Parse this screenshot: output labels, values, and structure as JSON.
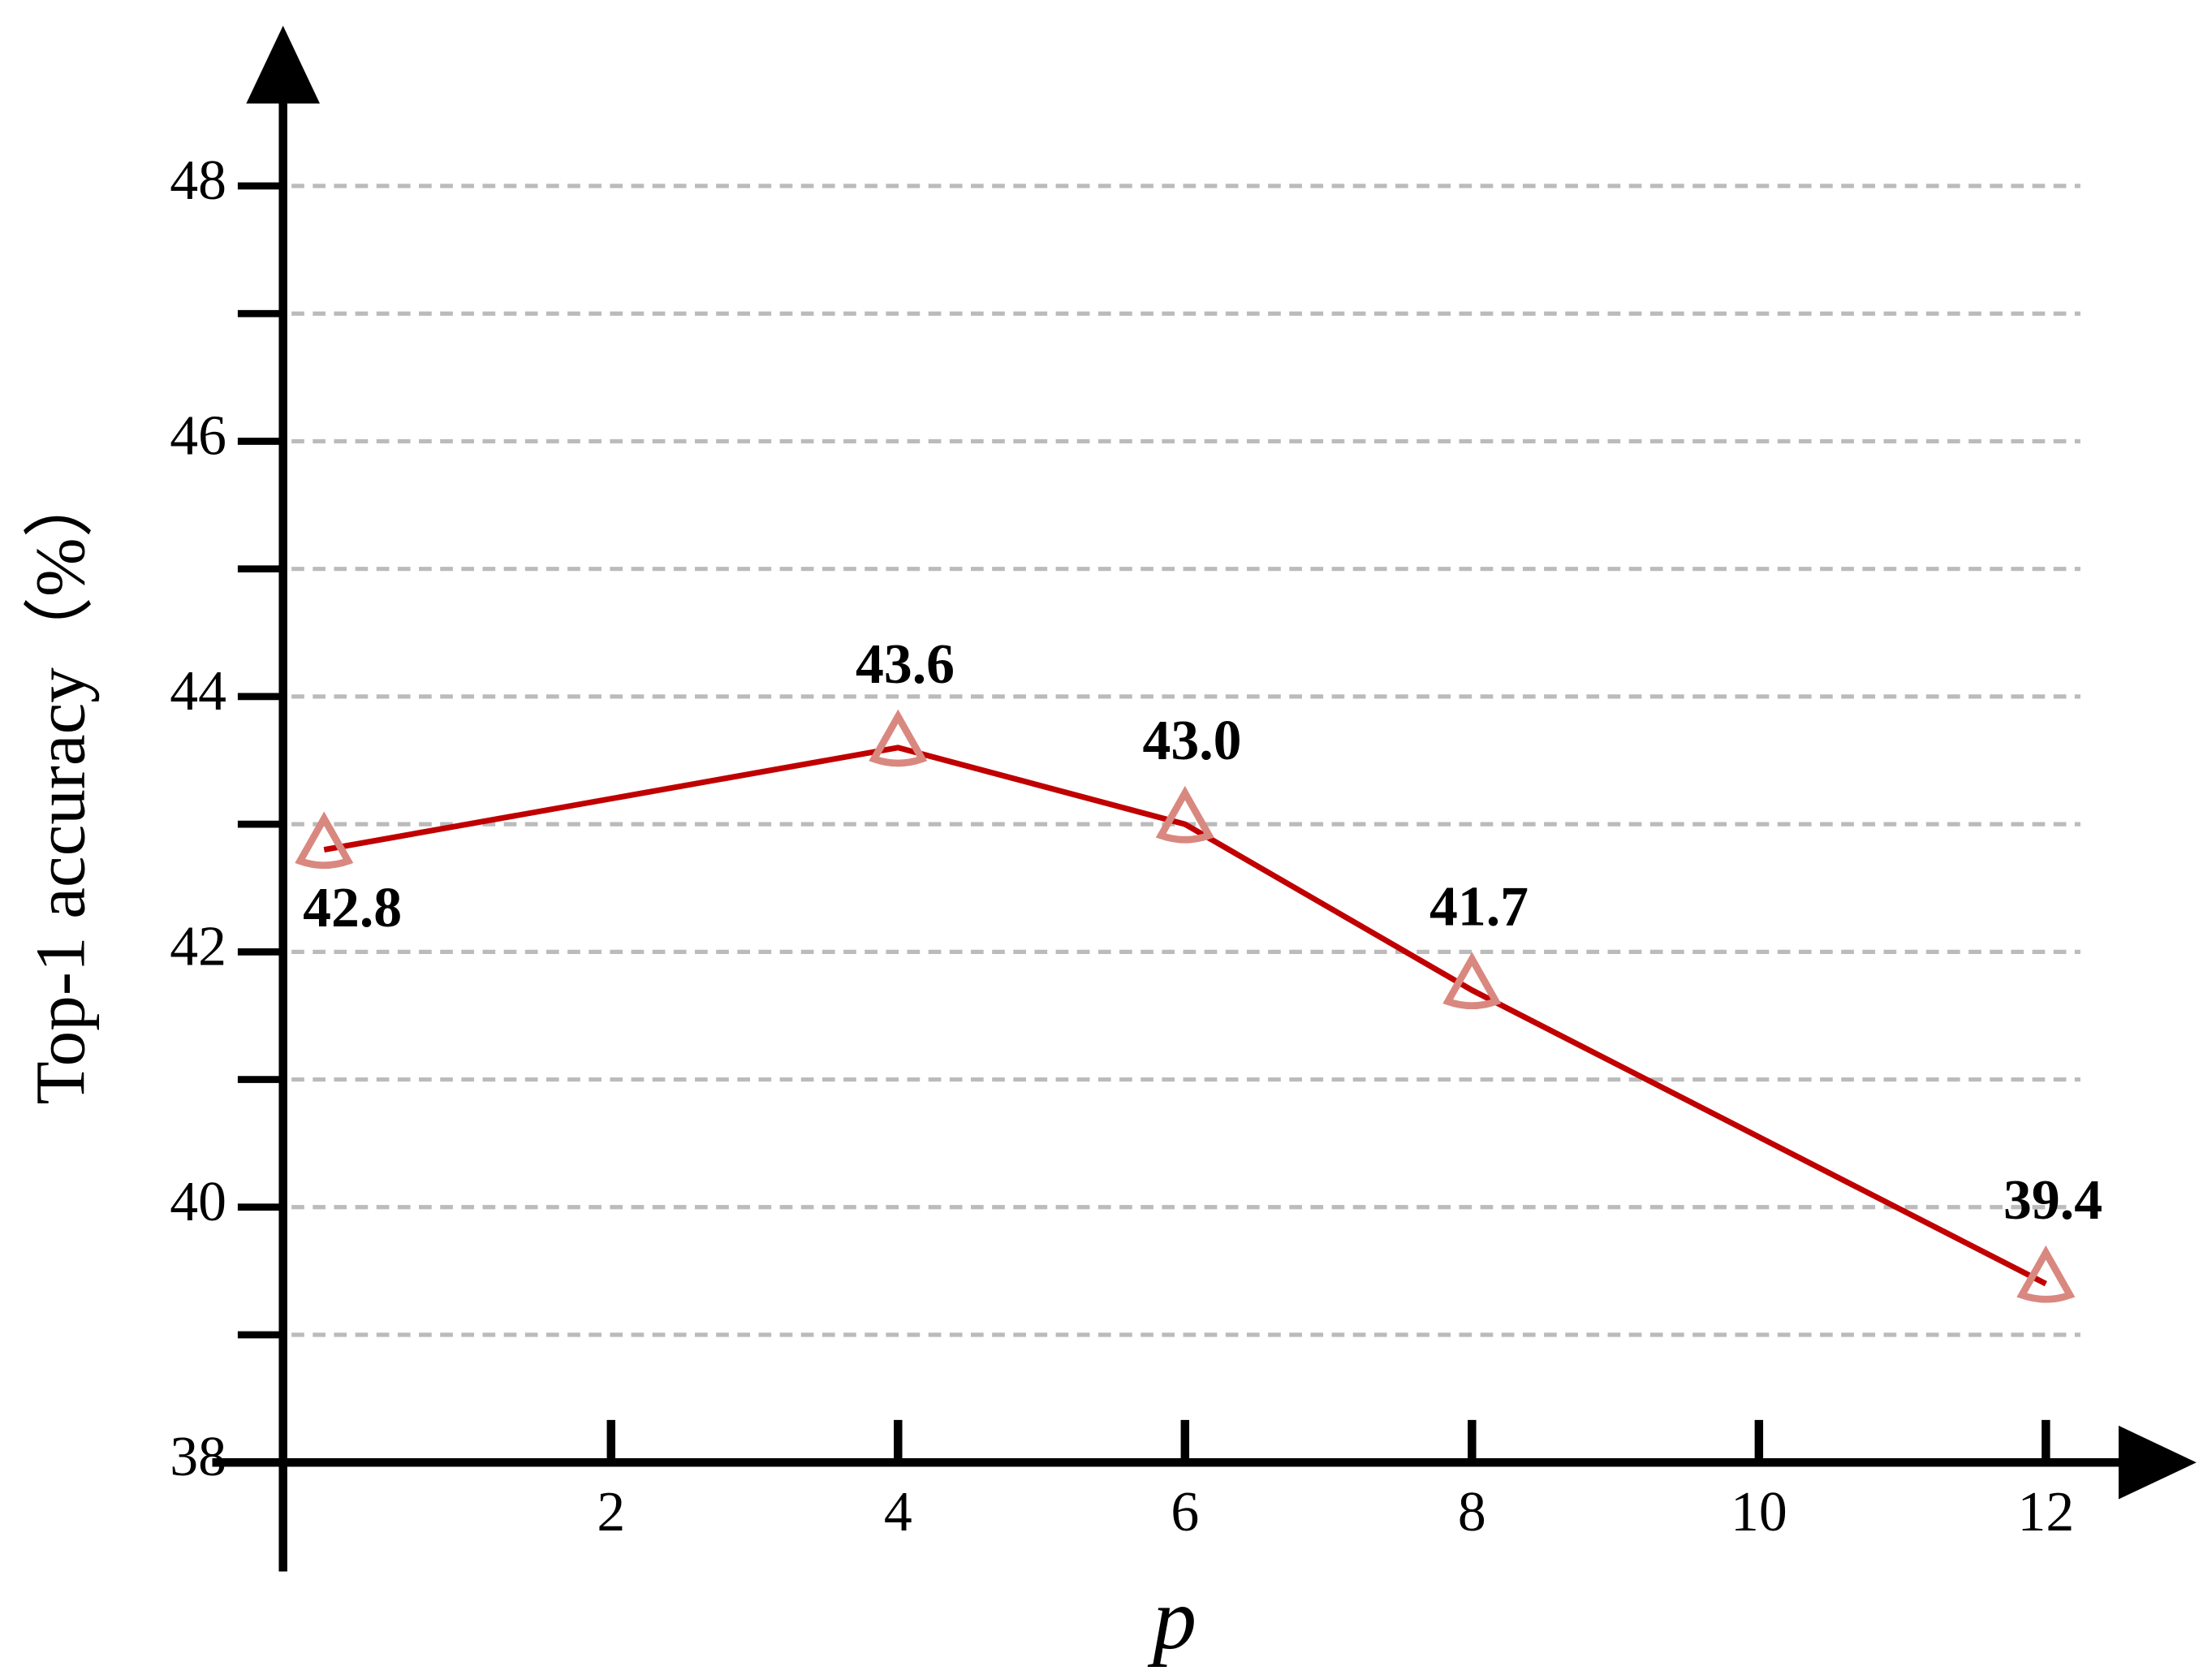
{
  "chart_data": {
    "type": "line",
    "xlabel": "p",
    "ylabel": "Top-1 accuracy（%）",
    "x": [
      0,
      4,
      6,
      8,
      12
    ],
    "series": [
      {
        "name": "Top-1 accuracy",
        "color": "#c00000",
        "marker_color": "#d98880",
        "values": [
          42.8,
          43.6,
          43.0,
          41.7,
          39.4
        ]
      }
    ],
    "xlim": [
      -0.3,
      13
    ],
    "xticks": [
      2,
      4,
      6,
      8,
      10,
      12
    ],
    "ylim": [
      38,
      49.2
    ],
    "yticks": [
      38,
      40,
      42,
      44,
      46,
      48
    ],
    "yminor_ticks": [
      39,
      41,
      43,
      45,
      47
    ],
    "grid": true
  }
}
